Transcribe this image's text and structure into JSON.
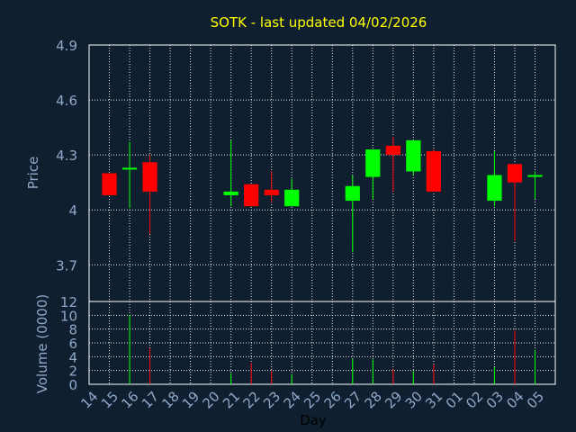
{
  "title": "SOTK - last updated 04/02/2026",
  "chart_data": {
    "type": "candlestick",
    "price_axis": {
      "label": "Price",
      "ticks": [
        3.7,
        4,
        4.3,
        4.6,
        4.9
      ],
      "tick_labels": [
        "3.7",
        "4",
        "4.3",
        "4.6",
        "4.9"
      ],
      "range": [
        3.5,
        4.9
      ]
    },
    "volume_axis": {
      "label": "Volume (0000)",
      "ticks": [
        0,
        2,
        4,
        6,
        8,
        10,
        12
      ],
      "tick_labels": [
        "0",
        "2",
        "4",
        "6",
        "8",
        "10",
        "12"
      ],
      "range": [
        0,
        12
      ]
    },
    "x_axis": {
      "label": "Day",
      "categories": [
        "14",
        "15",
        "16",
        "17",
        "18",
        "19",
        "20",
        "21",
        "22",
        "23",
        "24",
        "25",
        "26",
        "27",
        "28",
        "29",
        "30",
        "31",
        "01",
        "02",
        "03",
        "04",
        "05"
      ]
    },
    "grid": true,
    "colors": {
      "background": "#0f1f30",
      "up": "#00ff00",
      "down": "#ff0000",
      "grid": "#ffffff",
      "axis_text": "#8fa8c8",
      "title": "#ffff00"
    },
    "candles": [
      {
        "day": "14",
        "open": 4.2,
        "high": 4.2,
        "low": 4.08,
        "close": 4.08,
        "volume": 0
      },
      {
        "day": "15",
        "open": 4.22,
        "high": 4.37,
        "low": 4.01,
        "close": 4.23,
        "volume": 10.0
      },
      {
        "day": "16",
        "open": 4.26,
        "high": 4.3,
        "low": 3.87,
        "close": 4.1,
        "volume": 5.2
      },
      {
        "day": "20",
        "open": 4.08,
        "high": 4.38,
        "low": 4.02,
        "close": 4.1,
        "volume": 1.6
      },
      {
        "day": "21",
        "open": 4.14,
        "high": 4.14,
        "low": 4.02,
        "close": 4.02,
        "volume": 3.1
      },
      {
        "day": "22",
        "open": 4.11,
        "high": 4.21,
        "low": 4.04,
        "close": 4.08,
        "volume": 2.0
      },
      {
        "day": "23",
        "open": 4.02,
        "high": 4.17,
        "low": 4.02,
        "close": 4.11,
        "volume": 1.5
      },
      {
        "day": "26",
        "open": 4.05,
        "high": 4.19,
        "low": 3.77,
        "close": 4.13,
        "volume": 3.7
      },
      {
        "day": "27",
        "open": 4.18,
        "high": 4.33,
        "low": 4.06,
        "close": 4.33,
        "volume": 3.6
      },
      {
        "day": "28",
        "open": 4.35,
        "high": 4.4,
        "low": 4.1,
        "close": 4.3,
        "volume": 2.2
      },
      {
        "day": "29",
        "open": 4.21,
        "high": 4.38,
        "low": 4.19,
        "close": 4.38,
        "volume": 1.9
      },
      {
        "day": "30",
        "open": 4.32,
        "high": 4.33,
        "low": 4.1,
        "close": 4.1,
        "volume": 2.9
      },
      {
        "day": "02",
        "open": 4.05,
        "high": 4.32,
        "low": 4.02,
        "close": 4.19,
        "volume": 2.5
      },
      {
        "day": "03",
        "open": 4.25,
        "high": 4.25,
        "low": 3.83,
        "close": 4.15,
        "volume": 7.8
      },
      {
        "day": "04",
        "open": 4.19,
        "high": 4.21,
        "low": 4.06,
        "close": 4.19,
        "volume": 5.0
      }
    ]
  }
}
